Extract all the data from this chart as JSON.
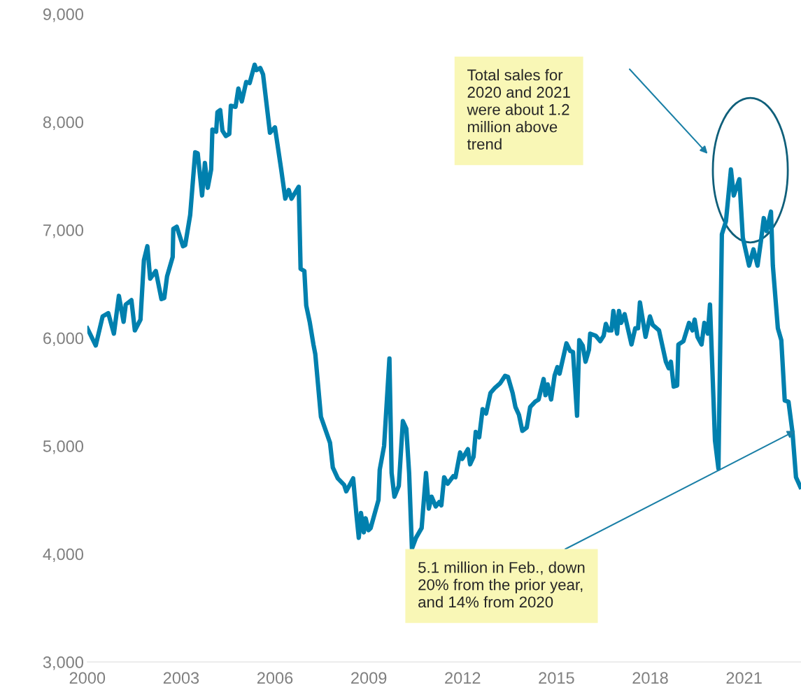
{
  "chart_data": {
    "type": "line",
    "x": [
      2000.0,
      2000.27,
      2000.49,
      2000.67,
      2000.85,
      2001.01,
      2001.16,
      2001.23,
      2001.41,
      2001.52,
      2001.7,
      2001.81,
      2001.92,
      2002.01,
      2002.19,
      2002.37,
      2002.46,
      2002.55,
      2002.73,
      2002.75,
      2002.86,
      2003.06,
      2003.13,
      2003.29,
      2003.45,
      2003.53,
      2003.67,
      2003.76,
      2003.85,
      2003.96,
      2004.0,
      2004.12,
      2004.16,
      2004.25,
      2004.32,
      2004.43,
      2004.54,
      2004.59,
      2004.74,
      2004.83,
      2004.94,
      2005.08,
      2005.19,
      2005.35,
      2005.41,
      2005.53,
      2005.62,
      2005.84,
      2006.0,
      2006.2,
      2006.33,
      2006.44,
      2006.53,
      2006.76,
      2006.82,
      2006.94,
      2007.0,
      2007.11,
      2007.23,
      2007.29,
      2007.47,
      2007.76,
      2007.85,
      2008.01,
      2008.21,
      2008.28,
      2008.5,
      2008.61,
      2008.68,
      2008.75,
      2008.84,
      2008.9,
      2008.99,
      2009.06,
      2009.31,
      2009.35,
      2009.49,
      2009.66,
      2009.73,
      2009.82,
      2009.96,
      2010.09,
      2010.2,
      2010.29,
      2010.38,
      2010.51,
      2010.69,
      2010.83,
      2010.92,
      2011.01,
      2011.14,
      2011.25,
      2011.32,
      2011.41,
      2011.52,
      2011.7,
      2011.77,
      2011.92,
      2011.99,
      2012.17,
      2012.24,
      2012.35,
      2012.42,
      2012.53,
      2012.64,
      2012.75,
      2012.89,
      2013.04,
      2013.2,
      2013.36,
      2013.45,
      2013.6,
      2013.69,
      2013.8,
      2013.91,
      2014.05,
      2014.16,
      2014.32,
      2014.43,
      2014.59,
      2014.65,
      2014.72,
      2014.83,
      2014.94,
      2015.03,
      2015.1,
      2015.32,
      2015.44,
      2015.53,
      2015.66,
      2015.73,
      2015.84,
      2015.93,
      2016.04,
      2016.08,
      2016.26,
      2016.4,
      2016.51,
      2016.58,
      2016.67,
      2016.76,
      2016.82,
      2016.94,
      2017.0,
      2017.07,
      2017.18,
      2017.4,
      2017.52,
      2017.61,
      2017.67,
      2017.85,
      2017.99,
      2018.08,
      2018.28,
      2018.5,
      2018.59,
      2018.66,
      2018.75,
      2018.86,
      2018.9,
      2019.06,
      2019.24,
      2019.35,
      2019.42,
      2019.51,
      2019.64,
      2019.73,
      2019.84,
      2019.91,
      2020.07,
      2020.18,
      2020.29,
      2020.42,
      2020.58,
      2020.67,
      2020.85,
      2020.96,
      2021.16,
      2021.3,
      2021.43,
      2021.54,
      2021.63,
      2021.72,
      2021.86,
      2021.92,
      2022.08,
      2022.19,
      2022.3,
      2022.42,
      2022.55,
      2022.66,
      2022.8
    ],
    "series": [
      {
        "color": "#0080ae",
        "values": [
          6090,
          5930,
          6200,
          6230,
          6040,
          6390,
          6150,
          6310,
          6350,
          6070,
          6170,
          6720,
          6850,
          6550,
          6620,
          6360,
          6370,
          6570,
          6750,
          7010,
          7030,
          6850,
          6860,
          7140,
          7720,
          7710,
          7320,
          7620,
          7390,
          7560,
          7930,
          7910,
          8090,
          8110,
          7920,
          7870,
          7890,
          8150,
          8140,
          8310,
          8190,
          8370,
          8360,
          8530,
          8480,
          8500,
          8440,
          7900,
          7950,
          7560,
          7290,
          7370,
          7290,
          7400,
          6640,
          6620,
          6300,
          6150,
          5940,
          5850,
          5270,
          5030,
          4800,
          4700,
          4640,
          4580,
          4700,
          4350,
          4150,
          4380,
          4200,
          4330,
          4220,
          4240,
          4500,
          4780,
          5000,
          5810,
          4750,
          4530,
          4630,
          5230,
          5160,
          4750,
          4050,
          4150,
          4240,
          4750,
          4420,
          4530,
          4440,
          4480,
          4450,
          4710,
          4650,
          4720,
          4710,
          4940,
          4880,
          4970,
          4830,
          4900,
          5130,
          5080,
          5340,
          5300,
          5490,
          5540,
          5580,
          5650,
          5640,
          5490,
          5360,
          5290,
          5140,
          5170,
          5360,
          5410,
          5430,
          5620,
          5470,
          5570,
          5430,
          5650,
          5730,
          5670,
          5950,
          5880,
          5870,
          5280,
          5980,
          5930,
          5780,
          5890,
          6040,
          6020,
          5970,
          6020,
          6130,
          6070,
          6070,
          6250,
          6040,
          6250,
          6140,
          6220,
          5940,
          6090,
          6090,
          6330,
          6010,
          6200,
          6120,
          6070,
          5780,
          5720,
          5780,
          5550,
          5560,
          5940,
          5970,
          6140,
          6070,
          6170,
          6010,
          5940,
          6140,
          6040,
          6310,
          5050,
          4790,
          6960,
          7080,
          7560,
          7320,
          7470,
          6930,
          6670,
          6820,
          6670,
          6900,
          7110,
          6990,
          7170,
          6670,
          6090,
          5980,
          5420,
          5410,
          5120,
          4710,
          4620
        ]
      }
    ],
    "xlim": [
      2000,
      2022.82
    ],
    "xticks": [
      2000,
      2003,
      2006,
      2009,
      2012,
      2015,
      2018,
      2021
    ],
    "ylim": [
      3000,
      9000
    ],
    "yticks": [
      {
        "value": 3000,
        "label": "3,000"
      },
      {
        "value": 4000,
        "label": "4,000"
      },
      {
        "value": 5000,
        "label": "5,000"
      },
      {
        "value": 6000,
        "label": "6,000"
      },
      {
        "value": 7000,
        "label": "7,000"
      },
      {
        "value": 8000,
        "label": "8,000"
      },
      {
        "value": 9000,
        "label": "9,000"
      }
    ],
    "grid": false,
    "legend": false,
    "line_style": "solid",
    "marker": "none",
    "annotations": [
      "Total sales for\n2020 and 2021\nwere about 1.2\nmillion above\ntrend",
      {
        "text": "5.1 million in Feb., down\n20% from the prior year,\nand 14% from 2020",
        "x": 2022.64,
        "y": 5140
      }
    ]
  }
}
